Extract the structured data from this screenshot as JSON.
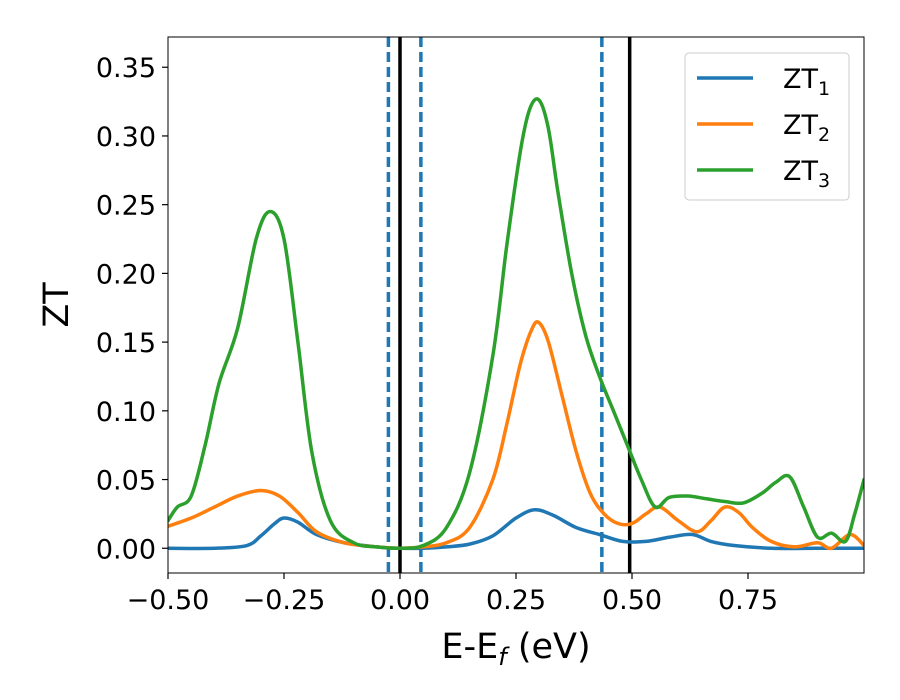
{
  "chart_data": {
    "type": "line",
    "xlabel": "E-E_f (eV)",
    "xlabel_parts": {
      "main": "E-E",
      "sub": "f",
      "tail": " (eV)"
    },
    "ylabel": "ZT",
    "xlim": [
      -0.5,
      1.0
    ],
    "ylim": [
      -0.018,
      0.372
    ],
    "xticks": [
      -0.5,
      -0.25,
      0.0,
      0.25,
      0.5,
      0.75
    ],
    "xtick_labels": [
      "−0.50",
      "−0.25",
      "0.00",
      "0.25",
      "0.50",
      "0.75"
    ],
    "yticks": [
      0.0,
      0.05,
      0.1,
      0.15,
      0.2,
      0.25,
      0.3,
      0.35
    ],
    "ytick_labels": [
      "0.00",
      "0.05",
      "0.10",
      "0.15",
      "0.20",
      "0.25",
      "0.30",
      "0.35"
    ],
    "grid": false,
    "legend_position": "top-right",
    "vlines_solid": {
      "color": "#000000",
      "x": [
        0.0,
        0.495
      ]
    },
    "vlines_dashed": {
      "color": "#1f77b4",
      "x": [
        -0.025,
        0.045,
        0.435
      ]
    },
    "series": [
      {
        "name": "ZT_1",
        "label_main": "ZT",
        "label_sub": "1",
        "color": "#1f77b4",
        "x": [
          -0.5,
          -0.4,
          -0.33,
          -0.3,
          -0.27,
          -0.25,
          -0.22,
          -0.18,
          -0.12,
          -0.05,
          0.0,
          0.05,
          0.1,
          0.15,
          0.2,
          0.25,
          0.29,
          0.33,
          0.38,
          0.43,
          0.48,
          0.53,
          0.58,
          0.63,
          0.67,
          0.72,
          0.8,
          0.9,
          0.95,
          1.0
        ],
        "y": [
          0.0,
          0.0,
          0.002,
          0.009,
          0.018,
          0.022,
          0.019,
          0.01,
          0.004,
          0.001,
          0.0,
          0.0,
          0.001,
          0.003,
          0.009,
          0.022,
          0.028,
          0.024,
          0.015,
          0.01,
          0.005,
          0.005,
          0.008,
          0.01,
          0.005,
          0.002,
          0.0,
          0.0,
          0.0,
          0.0
        ]
      },
      {
        "name": "ZT_2",
        "label_main": "ZT",
        "label_sub": "2",
        "color": "#ff7f0e",
        "x": [
          -0.5,
          -0.45,
          -0.4,
          -0.35,
          -0.3,
          -0.26,
          -0.22,
          -0.18,
          -0.12,
          -0.05,
          0.0,
          0.05,
          0.1,
          0.15,
          0.2,
          0.23,
          0.26,
          0.285,
          0.3,
          0.32,
          0.35,
          0.38,
          0.41,
          0.44,
          0.47,
          0.5,
          0.53,
          0.56,
          0.6,
          0.64,
          0.67,
          0.7,
          0.73,
          0.76,
          0.8,
          0.85,
          0.9,
          0.93,
          0.97,
          1.0
        ],
        "y": [
          0.016,
          0.022,
          0.03,
          0.038,
          0.042,
          0.038,
          0.026,
          0.012,
          0.004,
          0.001,
          0.0,
          0.001,
          0.004,
          0.015,
          0.05,
          0.09,
          0.135,
          0.16,
          0.164,
          0.15,
          0.11,
          0.07,
          0.04,
          0.025,
          0.018,
          0.018,
          0.025,
          0.03,
          0.02,
          0.012,
          0.02,
          0.03,
          0.026,
          0.015,
          0.005,
          0.001,
          0.004,
          0.0,
          0.01,
          0.002
        ]
      },
      {
        "name": "ZT_3",
        "label_main": "ZT",
        "label_sub": "3",
        "color": "#2ca02c",
        "x": [
          -0.5,
          -0.48,
          -0.45,
          -0.42,
          -0.39,
          -0.35,
          -0.31,
          -0.28,
          -0.25,
          -0.22,
          -0.19,
          -0.15,
          -0.1,
          -0.05,
          0.0,
          0.05,
          0.1,
          0.15,
          0.2,
          0.23,
          0.26,
          0.28,
          0.3,
          0.32,
          0.34,
          0.37,
          0.4,
          0.43,
          0.46,
          0.49,
          0.52,
          0.55,
          0.58,
          0.62,
          0.66,
          0.7,
          0.74,
          0.78,
          0.81,
          0.84,
          0.87,
          0.9,
          0.93,
          0.96,
          0.98,
          1.0
        ],
        "y": [
          0.02,
          0.03,
          0.038,
          0.075,
          0.12,
          0.16,
          0.225,
          0.245,
          0.225,
          0.15,
          0.07,
          0.02,
          0.004,
          0.001,
          0.0,
          0.002,
          0.015,
          0.055,
          0.14,
          0.22,
          0.29,
          0.32,
          0.326,
          0.305,
          0.26,
          0.2,
          0.155,
          0.125,
          0.1,
          0.075,
          0.05,
          0.03,
          0.037,
          0.038,
          0.036,
          0.034,
          0.033,
          0.04,
          0.048,
          0.052,
          0.03,
          0.008,
          0.011,
          0.005,
          0.025,
          0.05
        ]
      }
    ]
  }
}
